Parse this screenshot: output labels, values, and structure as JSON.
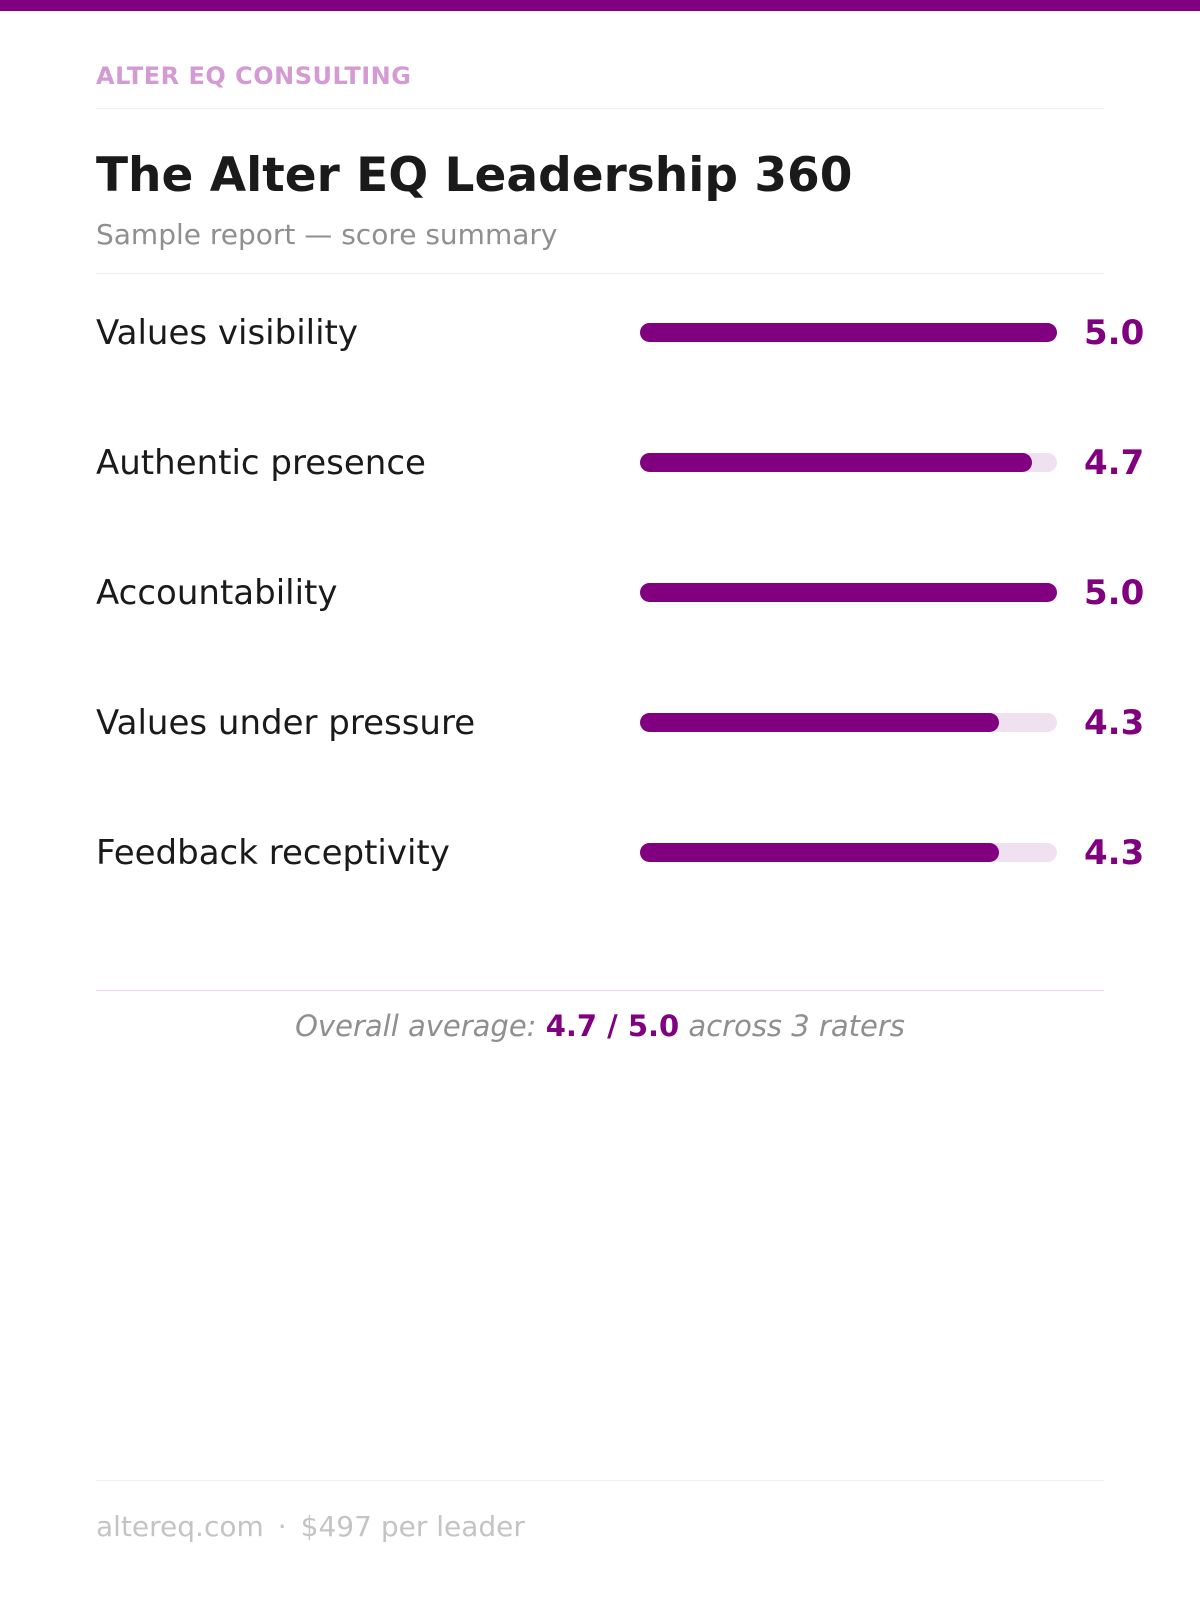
{
  "colors": {
    "accent": "#800080",
    "brand_text": "#d49ad4",
    "track": "#f0e1f0",
    "summary_rule": "#ecd6ec"
  },
  "header": {
    "brand": "ALTER EQ CONSULTING",
    "title": "The Alter EQ Leadership 360",
    "subtitle": "Sample report — score summary"
  },
  "chart_data": {
    "type": "bar",
    "orientation": "horizontal",
    "title": "The Alter EQ Leadership 360",
    "categories": [
      "Values visibility",
      "Authentic presence",
      "Accountability",
      "Values under pressure",
      "Feedback receptivity"
    ],
    "values": [
      5.0,
      4.7,
      5.0,
      4.3,
      4.3
    ],
    "value_labels": [
      "5.0",
      "4.7",
      "5.0",
      "4.3",
      "4.3"
    ],
    "xlim": [
      0,
      5.0
    ],
    "grid": false,
    "legend": "none"
  },
  "summary": {
    "prefix": "Overall average: ",
    "value": "4.7 / 5.0",
    "suffix": " across 3 raters"
  },
  "footer": {
    "website": "altereq.com",
    "separator": "·",
    "price": "$497 per leader"
  }
}
